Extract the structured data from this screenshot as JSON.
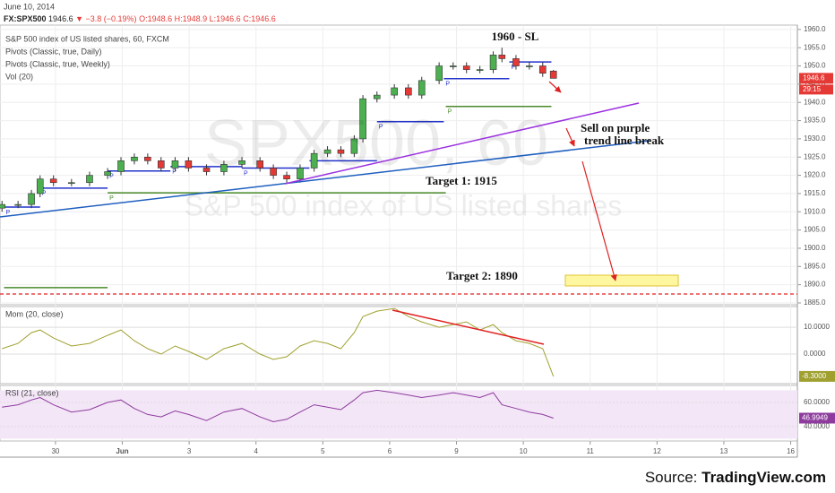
{
  "chart_data": {
    "type": "candlestick",
    "header": {
      "date": "June 10, 2014",
      "symbol": "FX:SPX500",
      "last": "1946.6",
      "change": "▼ −3.8 (−0.19%)",
      "open": "O:1948.6",
      "high": "H:1948.9",
      "low": "L:1946.6",
      "close": "C:1946.6"
    },
    "legend": [
      "S&P 500 index of US listed shares, 60, FXCM",
      "Pivots (Classic, true, Daily)",
      "Pivots (Classic, true, Weekly)",
      "Vol (20)"
    ],
    "watermark": [
      "SPX500, 60",
      "S&P 500 index of US listed shares"
    ],
    "annotations": {
      "sl": "1960 - SL",
      "sell": [
        "Sell on purple",
        "trend line break"
      ],
      "target1": "Target 1: 1915",
      "target2": "Target 2: 1890"
    },
    "price_tag": "1946.6",
    "countdown": "29:15",
    "source": {
      "prefix": "Source: ",
      "name": "TradingView.com"
    },
    "up_color": "#4caf50",
    "down_color": "#e53935",
    "x": [
      -0.8,
      -0.56,
      -0.36,
      -0.23,
      -0.03,
      0.24,
      0.51,
      0.78,
      0.98,
      1.18,
      1.38,
      1.58,
      1.79,
      1.99,
      2.26,
      2.52,
      2.79,
      3.06,
      3.26,
      3.46,
      3.66,
      3.87,
      4.07,
      4.27,
      4.47,
      4.6,
      4.81,
      5.07,
      5.28,
      5.48,
      5.74,
      5.95,
      6.15,
      6.35,
      6.55,
      6.68,
      6.89,
      7.09,
      7.29,
      7.45
    ],
    "open": [
      1911,
      1912,
      1912,
      1915,
      1919,
      1918,
      1918,
      1920,
      1921,
      1924,
      1925,
      1924,
      1922,
      1924,
      1922,
      1921,
      1923,
      1924,
      1922,
      1920,
      1919,
      1922,
      1926,
      1927,
      1926,
      1930,
      1941,
      1942,
      1944,
      1942,
      1946,
      1950,
      1950,
      1949,
      1949,
      1953,
      1952,
      1950,
      1950,
      1948.6
    ],
    "high": [
      1913,
      1913,
      1916,
      1920,
      1920,
      1919,
      1921,
      1922,
      1925,
      1926,
      1926,
      1925,
      1925,
      1925,
      1923,
      1924,
      1925,
      1925,
      1923,
      1921,
      1923,
      1927,
      1928,
      1928,
      1931,
      1942,
      1943,
      1945,
      1945,
      1947,
      1951,
      1951,
      1951,
      1950,
      1954,
      1955,
      1953,
      1951,
      1951,
      1948.9
    ],
    "low": [
      1910,
      1911,
      1911,
      1914,
      1917,
      1917,
      1917,
      1919,
      1920,
      1923,
      1923,
      1921,
      1921,
      1921,
      1920,
      1920,
      1922,
      1921,
      1919,
      1918,
      1918,
      1921,
      1925,
      1925,
      1925,
      1929,
      1940,
      1941,
      1941,
      1941,
      1945,
      1949,
      1948,
      1948,
      1948,
      1951,
      1949,
      1949,
      1947,
      1946.6
    ],
    "close": [
      1912,
      1912,
      1915,
      1919,
      1918,
      1918,
      1920,
      1921,
      1924,
      1925,
      1924,
      1922,
      1924,
      1922,
      1921,
      1923,
      1924,
      1922,
      1920,
      1919,
      1922,
      1926,
      1927,
      1926,
      1930,
      1941,
      1942,
      1944,
      1942,
      1946,
      1950,
      1950,
      1949,
      1949,
      1953,
      1952,
      1950,
      1950,
      1948,
      1946.6
    ],
    "xlim": [
      -0.83,
      11.1
    ],
    "xticks": [
      {
        "value": 0,
        "label": "30"
      },
      {
        "value": 1,
        "label": "Jun"
      },
      {
        "value": 2,
        "label": "3"
      },
      {
        "value": 3,
        "label": "4"
      },
      {
        "value": 4,
        "label": "5"
      },
      {
        "value": 5,
        "label": "6"
      },
      {
        "value": 6,
        "label": "9"
      },
      {
        "value": 7,
        "label": "10"
      },
      {
        "value": 8,
        "label": "11"
      },
      {
        "value": 9,
        "label": "12"
      },
      {
        "value": 10,
        "label": "13"
      },
      {
        "value": 11,
        "label": "16"
      }
    ],
    "ylim": [
      1884.5,
      1961.2
    ],
    "yticks": [
      {
        "value": 1885,
        "label": "1885.0"
      },
      {
        "value": 1890,
        "label": "1890.0"
      },
      {
        "value": 1895,
        "label": "1895.0"
      },
      {
        "value": 1900,
        "label": "1900.0"
      },
      {
        "value": 1905,
        "label": "1905.0"
      },
      {
        "value": 1910,
        "label": "1910.0"
      },
      {
        "value": 1915,
        "label": "1915.0"
      },
      {
        "value": 1920,
        "label": "1920.0"
      },
      {
        "value": 1925,
        "label": "1925.0"
      },
      {
        "value": 1930,
        "label": "1930.0"
      },
      {
        "value": 1935,
        "label": "1935.0"
      },
      {
        "value": 1940,
        "label": "1940.0"
      },
      {
        "value": 1945,
        "label": "1945.0"
      },
      {
        "value": 1950,
        "label": "1950.0"
      },
      {
        "value": 1955,
        "label": "1955.0"
      },
      {
        "value": 1960,
        "label": "1960.0"
      }
    ],
    "grid": true,
    "pivots": [
      {
        "start": -0.77,
        "end": -0.23,
        "value": 1911.3,
        "color": "#2233cc",
        "label": "P"
      },
      {
        "start": -0.23,
        "end": 0.78,
        "value": 1916.5,
        "color": "#2233cc",
        "label": "P"
      },
      {
        "start": 0.78,
        "end": 1.72,
        "value": 1921.2,
        "color": "#2233cc",
        "label": "P"
      },
      {
        "start": 1.72,
        "end": 2.79,
        "value": 1922.4,
        "color": "#2233cc",
        "label": "P"
      },
      {
        "start": 2.79,
        "end": 3.8,
        "value": 1922,
        "color": "#2233cc",
        "label": "P"
      },
      {
        "start": 3.8,
        "end": 4.81,
        "value": 1924,
        "color": "#2233cc",
        "label": "P"
      },
      {
        "start": 4.81,
        "end": 5.81,
        "value": 1934.7,
        "color": "#2233cc",
        "label": "P"
      },
      {
        "start": 5.81,
        "end": 6.79,
        "value": 1946.5,
        "color": "#2233cc",
        "label": "P"
      },
      {
        "start": 6.79,
        "end": 7.42,
        "value": 1951.1,
        "color": "#2233cc",
        "label": "P"
      },
      {
        "start": -0.77,
        "end": 0.78,
        "value": 1889.2,
        "color": "#4a8a2a"
      },
      {
        "start": 0.78,
        "end": 5.84,
        "value": 1915.2,
        "color": "#4a8a2a",
        "label": "P"
      },
      {
        "start": 5.84,
        "end": 7.42,
        "value": 1938.9,
        "color": "#4a8a2a",
        "label": "P"
      }
    ],
    "indicators": [
      {
        "name": "Mom (20, close)",
        "type": "line",
        "color": "#a0a030",
        "values": [
          2,
          4,
          8,
          9,
          6,
          3,
          4,
          7,
          9,
          5,
          2,
          0,
          3,
          1,
          -2,
          2,
          4,
          0,
          -2,
          -1,
          3,
          5,
          4,
          2,
          8,
          14,
          16,
          17,
          14,
          12,
          10,
          11,
          12,
          9,
          11,
          8,
          5,
          4,
          2,
          -8.3
        ],
        "ylim": [
          -11,
          17.7
        ],
        "yticks": [
          {
            "value": 10,
            "label": "10.0000"
          },
          {
            "value": 0,
            "label": "0.0000"
          }
        ],
        "last_label": "-8.3000",
        "tag_color": "#a0a030"
      },
      {
        "name": "RSI (21, close)",
        "type": "line",
        "color": "#8e3b9e",
        "values": [
          56,
          58,
          62,
          64,
          58,
          52,
          54,
          60,
          62,
          55,
          50,
          48,
          53,
          50,
          45,
          52,
          55,
          48,
          44,
          46,
          52,
          58,
          56,
          54,
          62,
          68,
          70,
          68,
          66,
          64,
          66,
          68,
          66,
          64,
          68,
          58,
          55,
          52,
          50,
          46.9949
        ],
        "ylim": [
          28.1,
          74
        ],
        "yticks": [
          {
            "value": 60,
            "label": "60.0000"
          },
          {
            "value": 40,
            "label": "40.0000"
          }
        ],
        "band": [
          30,
          70
        ],
        "last_label": "46.9949",
        "tag_color": "#8e3b9e"
      }
    ]
  }
}
